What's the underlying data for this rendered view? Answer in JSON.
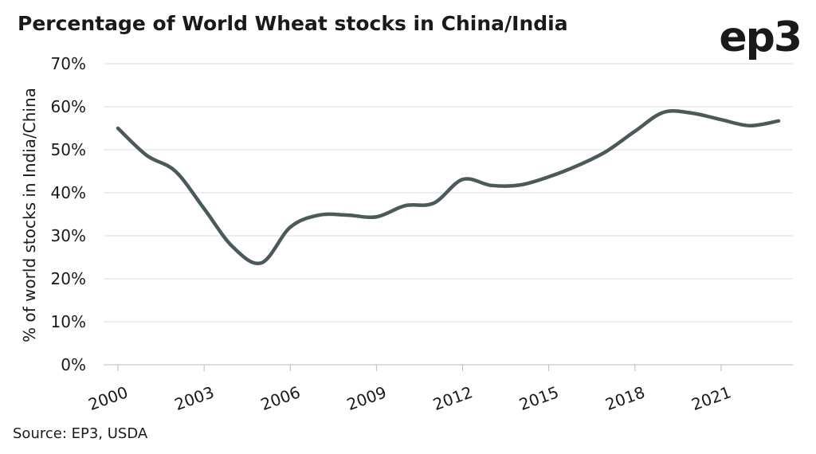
{
  "chart_data": {
    "type": "line",
    "title": "Percentage of World Wheat stocks in China/India",
    "logo": "ep3",
    "source": "Source: EP3, USDA",
    "y_label": "% of world stocks in India/China",
    "x": [
      2000,
      2001,
      2002,
      2003,
      2004,
      2005,
      2006,
      2007,
      2008,
      2009,
      2010,
      2011,
      2012,
      2013,
      2014,
      2015,
      2016,
      2017,
      2018,
      2019,
      2020,
      2021,
      2022,
      2023
    ],
    "series": [
      {
        "color": "#4a5a5a",
        "values": [
          55,
          48.7,
          45,
          36.3,
          27.4,
          23.7,
          32,
          34.8,
          34.8,
          34.4,
          37,
          37.6,
          43.1,
          41.7,
          41.8,
          43.7,
          46.3,
          49.6,
          54.3,
          58.7,
          58.5,
          57,
          55.6,
          56.7
        ]
      }
    ],
    "xlim": [
      1999.5,
      2023.5
    ],
    "xticks": [
      2000,
      2003,
      2006,
      2009,
      2012,
      2015,
      2018,
      2021
    ],
    "ylim": [
      0,
      70
    ],
    "yticks": [
      {
        "value": 0,
        "label": "0%"
      },
      {
        "value": 10,
        "label": "10%"
      },
      {
        "value": 20,
        "label": "20%"
      },
      {
        "value": 30,
        "label": "30%"
      },
      {
        "value": 40,
        "label": "40%"
      },
      {
        "value": 50,
        "label": "50%"
      },
      {
        "value": 60,
        "label": "60%"
      },
      {
        "value": 70,
        "label": "70%"
      }
    ],
    "grid": true
  }
}
